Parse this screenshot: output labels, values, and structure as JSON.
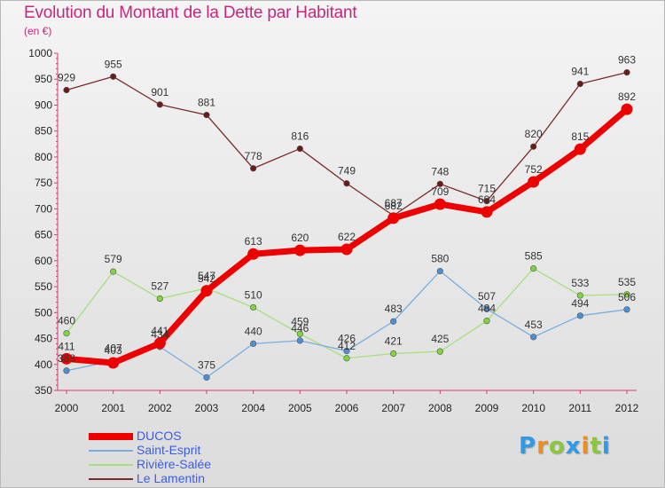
{
  "title": "Evolution du Montant de la Dette par Habitant",
  "unit": "(en €)",
  "logo": {
    "text": "Proxiti",
    "letters": [
      {
        "ch": "P",
        "color": "#2f9be6"
      },
      {
        "ch": "r",
        "color": "#f08c1f"
      },
      {
        "ch": "o",
        "color": "#8bc63e"
      },
      {
        "ch": "x",
        "color": "#2f9be6"
      },
      {
        "ch": "i",
        "color": "#f08c1f"
      },
      {
        "ch": "t",
        "color": "#8bc63e"
      },
      {
        "ch": "i",
        "color": "#2f9be6"
      }
    ]
  },
  "chart_data": {
    "type": "line",
    "title": "Evolution du Montant de la Dette par Habitant",
    "ylabel": "(en €)",
    "xlabel": "",
    "ylim": [
      350,
      1000
    ],
    "yticks": [
      350,
      400,
      450,
      500,
      550,
      600,
      650,
      700,
      750,
      800,
      850,
      900,
      950,
      1000
    ],
    "grid": false,
    "legend_position": "bottom-left",
    "x": [
      "2000",
      "2001",
      "2002",
      "2003",
      "2004",
      "2005",
      "2006",
      "2007",
      "2008",
      "2009",
      "2010",
      "2011",
      "2012"
    ],
    "series": [
      {
        "name": "DUCOS",
        "color": "#ee0000",
        "line_color": "#ee0000",
        "values": [
          411,
          403,
          441,
          542,
          613,
          620,
          622,
          682,
          709,
          694,
          752,
          815,
          892
        ],
        "labels": [
          "411",
          "403",
          "441",
          "542",
          "613",
          "620",
          "622",
          "682",
          "709",
          "694",
          "752",
          "815",
          "892"
        ]
      },
      {
        "name": "Saint-Esprit",
        "color": "#4a90d9",
        "line_color": "#78aee0",
        "values": [
          388,
          407,
          434,
          375,
          440,
          446,
          426,
          483,
          580,
          507,
          453,
          494,
          506
        ],
        "labels": [
          "388",
          "407",
          "434",
          "375",
          "440",
          "446",
          "426",
          "483",
          "580",
          "507",
          "453",
          "494",
          "506"
        ]
      },
      {
        "name": "Rivière-Salée",
        "color": "#7fd63c",
        "line_color": "#a6df7d",
        "values": [
          460,
          579,
          527,
          547,
          510,
          459,
          412,
          421,
          425,
          484,
          585,
          533,
          535
        ],
        "labels": [
          "460",
          "579",
          "527",
          "547",
          "510",
          "459",
          "412",
          "421",
          "425",
          "484",
          "585",
          "533",
          "535"
        ]
      },
      {
        "name": "Le Lamentin",
        "color": "#6b1a1a",
        "line_color": "#7a2a2a",
        "values": [
          929,
          955,
          901,
          881,
          778,
          816,
          749,
          687,
          748,
          715,
          820,
          941,
          963
        ],
        "labels": [
          "929",
          "955",
          "901",
          "881",
          "778",
          "816",
          "749",
          "687",
          "748",
          "715",
          "820",
          "941",
          "963"
        ]
      }
    ]
  }
}
